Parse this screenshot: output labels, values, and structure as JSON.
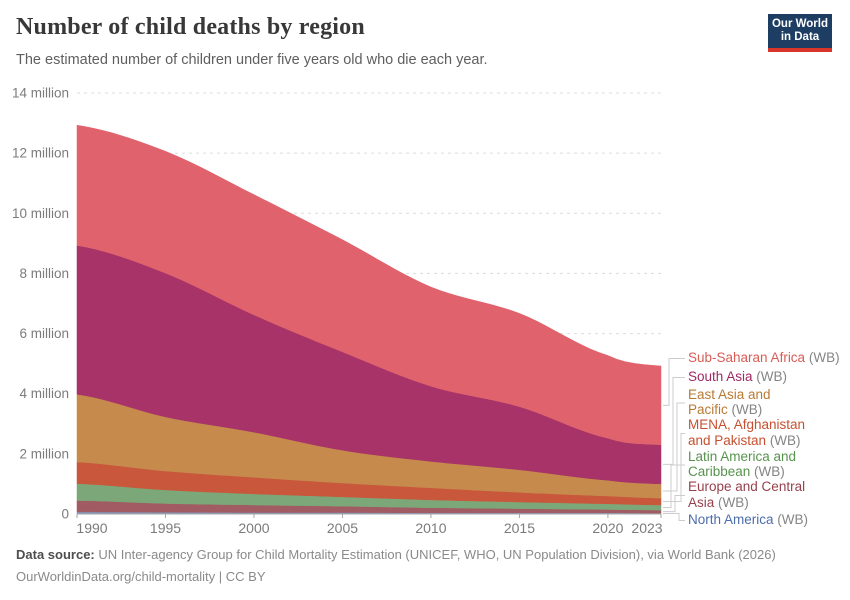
{
  "header": {
    "title": "Number of child deaths by region",
    "subtitle": "The estimated number of children under five years old who die each year."
  },
  "logo": {
    "line1": "Our World",
    "line2": "in Data"
  },
  "footer": {
    "source_label": "Data source:",
    "source_text": "UN Inter-agency Group for Child Mortality Estimation (UNICEF, WHO, UN Population Division), via World Bank (2026)",
    "line2": "OurWorldinData.org/child-mortality | CC BY"
  },
  "colors": {
    "background": "#ffffff",
    "gridline": "#dcdcdc",
    "axis_line": "#a5a5a5",
    "tick_text": "#7b7b7b",
    "connector": "#cccccc",
    "legend_suffix": "#858585",
    "logo_bg": "#1d3d63",
    "logo_red": "#d8352b"
  },
  "chart_data": {
    "type": "area",
    "stacked": true,
    "title": "Number of child deaths by region",
    "xlabel": "",
    "ylabel": "",
    "unit": "million deaths per year",
    "x_range": [
      1990,
      2023
    ],
    "x_tick_years": [
      1990,
      1995,
      2000,
      2005,
      2010,
      2015,
      2020,
      2023
    ],
    "ylim": [
      0,
      14
    ],
    "y_ticks": [
      {
        "value": 0,
        "label": "0"
      },
      {
        "value": 2,
        "label": "2 million"
      },
      {
        "value": 4,
        "label": "4 million"
      },
      {
        "value": 6,
        "label": "6 million"
      },
      {
        "value": 8,
        "label": "8 million"
      },
      {
        "value": 10,
        "label": "10 million"
      },
      {
        "value": 12,
        "label": "12 million"
      },
      {
        "value": 14,
        "label": "14 million"
      }
    ],
    "grid": true,
    "legend_position": "right",
    "anchor_years": [
      1990,
      1995,
      2000,
      2005,
      2010,
      2015,
      2020,
      2023
    ],
    "series_top_to_bottom": [
      {
        "name": "Sub-Saharan Africa",
        "suffix": "(WB)",
        "label_lines": [
          "Sub-Saharan Africa"
        ],
        "fill": "#e0626c",
        "text_color": "#d85c55",
        "values_millions": [
          4.0,
          4.05,
          4.0,
          3.73,
          3.3,
          3.1,
          2.75,
          2.62
        ]
      },
      {
        "name": "South Asia",
        "suffix": "(WB)",
        "label_lines": [
          "South Asia"
        ],
        "fill": "#a73368",
        "text_color": "#9e2963",
        "values_millions": [
          4.95,
          4.78,
          3.9,
          3.27,
          2.5,
          2.1,
          1.4,
          1.3
        ]
      },
      {
        "name": "East Asia and Pacific",
        "suffix": "(WB)",
        "label_lines": [
          "East Asia and",
          "Pacific"
        ],
        "fill": "#c68a4d",
        "text_color": "#b87a33",
        "values_millions": [
          2.25,
          1.8,
          1.5,
          1.09,
          0.88,
          0.75,
          0.52,
          0.47
        ]
      },
      {
        "name": "MENA, Afghanistan and Pakistan",
        "suffix": "(WB)",
        "label_lines": [
          "MENA, Afghanistan",
          "and Pakistan"
        ],
        "fill": "#c9573b",
        "text_color": "#c6502f",
        "values_millions": [
          0.72,
          0.63,
          0.55,
          0.46,
          0.4,
          0.32,
          0.26,
          0.23
        ]
      },
      {
        "name": "Latin America and Caribbean",
        "suffix": "(WB)",
        "label_lines": [
          "Latin America and",
          "Caribbean"
        ],
        "fill": "#7ba779",
        "text_color": "#58934e",
        "values_millions": [
          0.56,
          0.45,
          0.37,
          0.31,
          0.26,
          0.22,
          0.19,
          0.17
        ]
      },
      {
        "name": "Europe and Central Asia",
        "suffix": "(WB)",
        "label_lines": [
          "Europe and Central",
          "Asia"
        ],
        "fill": "#a15b62",
        "text_color": "#97414d",
        "values_millions": [
          0.38,
          0.29,
          0.25,
          0.21,
          0.17,
          0.14,
          0.11,
          0.1
        ]
      },
      {
        "name": "North America",
        "suffix": "(WB)",
        "label_lines": [
          "North America"
        ],
        "fill": "#8496bd",
        "text_color": "#4d6dab",
        "values_millions": [
          0.07,
          0.06,
          0.05,
          0.05,
          0.04,
          0.04,
          0.04,
          0.03
        ]
      }
    ]
  }
}
